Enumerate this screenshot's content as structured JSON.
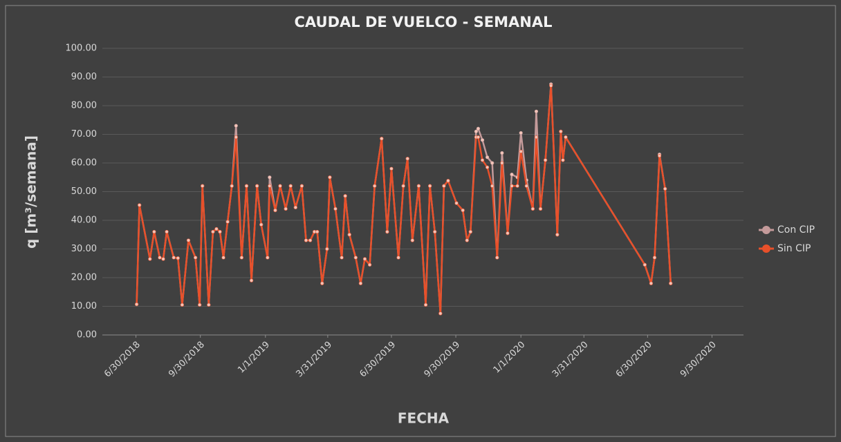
{
  "chart_data": {
    "type": "line",
    "title": "CAUDAL DE VUELCO - SEMANAL",
    "x_label": "FECHA",
    "y_label": "q [m³/semana]",
    "x": [
      "2018-07-01",
      "2018-07-05",
      "2018-07-20",
      "2018-07-26",
      "2018-08-03",
      "2018-08-08",
      "2018-08-13",
      "2018-08-23",
      "2018-08-29",
      "2018-09-04",
      "2018-09-13",
      "2018-09-23",
      "2018-09-29",
      "2018-10-03",
      "2018-10-12",
      "2018-10-18",
      "2018-10-23",
      "2018-10-28",
      "2018-11-02",
      "2018-11-08",
      "2018-11-14",
      "2018-11-20",
      "2018-11-28",
      "2018-12-05",
      "2018-12-12",
      "2018-12-20",
      "2018-12-26",
      "2019-01-04",
      "2019-01-07",
      "2019-01-15",
      "2019-01-22",
      "2019-01-30",
      "2019-02-06",
      "2019-02-13",
      "2019-02-22",
      "2019-02-28",
      "2019-03-06",
      "2019-03-12",
      "2019-03-16",
      "2019-03-23",
      "2019-03-30",
      "2019-04-03",
      "2019-04-11",
      "2019-04-20",
      "2019-04-25",
      "2019-05-01",
      "2019-05-10",
      "2019-05-17",
      "2019-05-23",
      "2019-05-30",
      "2019-06-06",
      "2019-06-16",
      "2019-06-24",
      "2019-06-30",
      "2019-07-10",
      "2019-07-17",
      "2019-07-23",
      "2019-07-30",
      "2019-08-08",
      "2019-08-18",
      "2019-08-24",
      "2019-08-31",
      "2019-09-08",
      "2019-09-13",
      "2019-09-19",
      "2019-10-01",
      "2019-10-10",
      "2019-10-16",
      "2019-10-21",
      "2019-10-29",
      "2019-11-01",
      "2019-11-07",
      "2019-11-14",
      "2019-11-21",
      "2019-11-28",
      "2019-12-05",
      "2019-12-13",
      "2019-12-19",
      "2019-12-27",
      "2020-01-01",
      "2020-01-09",
      "2020-01-18",
      "2020-01-23",
      "2020-01-29",
      "2020-02-05",
      "2020-02-13",
      "2020-02-22",
      "2020-02-27",
      "2020-03-01",
      "2020-03-05",
      "2020-06-26",
      "2020-07-05",
      "2020-07-10",
      "2020-07-17",
      "2020-07-25",
      "2020-08-02"
    ],
    "series": [
      {
        "name": "Con CIP",
        "color": "#c49a9a",
        "values": [
          10.7,
          45.3,
          26.5,
          36,
          27,
          26.5,
          36,
          27,
          26.8,
          10.5,
          33,
          27,
          10.5,
          52,
          10.5,
          36,
          37,
          36,
          27,
          39.5,
          52,
          73,
          27,
          52,
          19,
          52,
          38.5,
          27,
          55,
          43.5,
          52,
          44,
          52,
          44.5,
          52,
          33,
          33,
          36,
          36,
          18,
          30,
          55,
          44,
          27,
          48.5,
          35,
          27,
          18,
          26.5,
          24.5,
          52,
          68.5,
          36,
          58,
          27,
          52,
          61.5,
          33,
          52,
          10.5,
          52,
          36,
          7.5,
          52,
          53.8,
          46,
          43.5,
          33,
          36,
          71,
          72,
          68,
          62,
          60,
          27,
          63.5,
          35.5,
          56,
          55,
          70.5,
          54,
          44,
          78,
          44,
          61,
          87.5,
          35,
          71,
          61,
          69,
          24.5,
          18,
          27,
          63,
          51,
          18
        ]
      },
      {
        "name": "Sin CIP",
        "color": "#e8502a",
        "values": [
          10.7,
          45.3,
          26.5,
          36,
          27,
          26.5,
          36,
          27,
          26.8,
          10.5,
          33,
          27,
          10.5,
          52,
          10.5,
          36,
          37,
          36,
          27,
          39.5,
          52,
          69,
          27,
          52,
          19,
          52,
          38.5,
          27,
          52,
          43.5,
          52,
          44,
          52,
          44.5,
          52,
          33,
          33,
          36,
          36,
          18,
          30,
          55,
          44,
          27,
          48.5,
          35,
          27,
          18,
          26.5,
          24.5,
          52,
          68.5,
          36,
          58,
          27,
          52,
          61.5,
          33,
          52,
          10.5,
          52,
          36,
          7.5,
          52,
          53.8,
          46,
          43.5,
          33,
          36,
          69,
          69,
          61,
          58.5,
          52,
          27,
          60,
          35.5,
          52,
          52,
          64,
          52,
          44,
          69,
          44,
          61,
          87,
          35,
          71,
          61,
          69,
          24.5,
          18,
          27,
          62.5,
          51,
          18
        ]
      }
    ],
    "xlim": [
      "2018-05-13",
      "2020-11-14"
    ],
    "xticks": [
      {
        "value": "2018-06-30",
        "label": "6/30/2018"
      },
      {
        "value": "2018-09-30",
        "label": "9/30/2018"
      },
      {
        "value": "2019-01-01",
        "label": "1/1/2019"
      },
      {
        "value": "2019-03-31",
        "label": "3/31/2019"
      },
      {
        "value": "2019-06-30",
        "label": "6/30/2019"
      },
      {
        "value": "2019-09-30",
        "label": "9/30/2019"
      },
      {
        "value": "2020-01-01",
        "label": "1/1/2020"
      },
      {
        "value": "2020-03-31",
        "label": "3/31/2020"
      },
      {
        "value": "2020-06-30",
        "label": "6/30/2020"
      },
      {
        "value": "2020-09-30",
        "label": "9/30/2020"
      }
    ],
    "ylim": [
      0,
      100
    ],
    "yticks": [
      {
        "value": 0,
        "label": "0.00"
      },
      {
        "value": 10,
        "label": "10.00"
      },
      {
        "value": 20,
        "label": "20.00"
      },
      {
        "value": 30,
        "label": "30.00"
      },
      {
        "value": 40,
        "label": "40.00"
      },
      {
        "value": 50,
        "label": "50.00"
      },
      {
        "value": 60,
        "label": "60.00"
      },
      {
        "value": 70,
        "label": "70.00"
      },
      {
        "value": 80,
        "label": "80.00"
      },
      {
        "value": 90,
        "label": "90.00"
      },
      {
        "value": 100,
        "label": "100.00"
      }
    ],
    "grid": true,
    "legend": "right"
  }
}
